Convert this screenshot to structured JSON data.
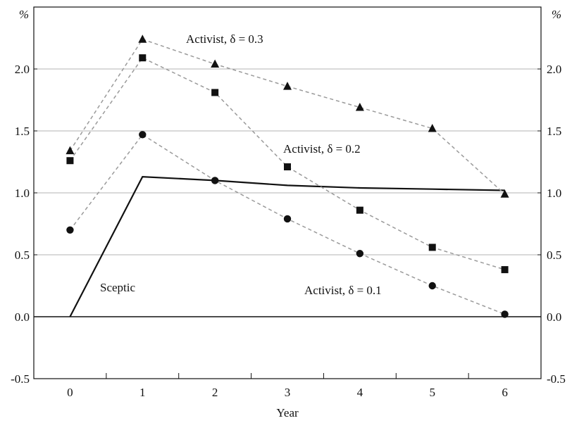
{
  "chart_data": {
    "type": "line",
    "xlabel": "Year",
    "ylabel_left": "%",
    "ylabel_right": "%",
    "x": [
      0,
      1,
      2,
      3,
      4,
      5,
      6
    ],
    "xlim": [
      -0.5,
      6.5
    ],
    "ylim": [
      -0.5,
      2.5
    ],
    "yticks": [
      -0.5,
      0.0,
      0.5,
      1.0,
      1.5,
      2.0
    ],
    "ytick_labels": [
      "-0.5",
      "0.0",
      "0.5",
      "1.0",
      "1.5",
      "2.0"
    ],
    "xtick_labels": [
      "0",
      "1",
      "2",
      "3",
      "4",
      "5",
      "6"
    ],
    "grid": "horizontal",
    "zero_line": true,
    "series": [
      {
        "key": "sceptic",
        "name": "Sceptic",
        "style": "solid",
        "marker": "none",
        "color": "#111111",
        "values": [
          0.0,
          1.13,
          1.1,
          1.06,
          1.04,
          1.03,
          1.02
        ]
      },
      {
        "key": "delta01",
        "name": "Activist, δ = 0.1",
        "style": "dashed",
        "marker": "circle",
        "color": "#111111",
        "values": [
          0.7,
          1.47,
          1.1,
          0.79,
          0.51,
          0.25,
          0.02
        ]
      },
      {
        "key": "delta02",
        "name": "Activist, δ = 0.2",
        "style": "dashed",
        "marker": "square",
        "color": "#111111",
        "values": [
          1.26,
          2.09,
          1.81,
          1.21,
          0.86,
          0.56,
          0.38
        ]
      },
      {
        "key": "delta03",
        "name": "Activist, δ = 0.3",
        "style": "dashed",
        "marker": "triangle",
        "color": "#111111",
        "values": [
          1.34,
          2.24,
          2.04,
          1.86,
          1.69,
          1.52,
          0.99
        ]
      }
    ],
    "annotations": [
      {
        "key": "ann-delta03",
        "text": "Activist, δ = 0.3"
      },
      {
        "key": "ann-delta02",
        "text": "Activist, δ = 0.2"
      },
      {
        "key": "ann-delta01",
        "text": "Activist, δ = 0.1"
      },
      {
        "key": "ann-sceptic",
        "text": "Sceptic"
      }
    ],
    "colors": {
      "grid": "#b3b3b3",
      "dashed_line": "#9a9a9a",
      "axis": "#111111"
    }
  }
}
